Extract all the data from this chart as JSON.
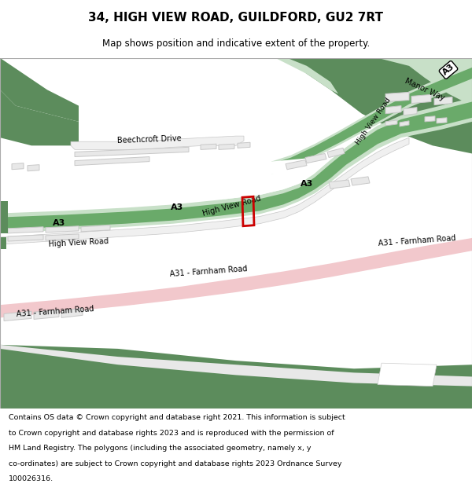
{
  "title": "34, HIGH VIEW ROAD, GUILDFORD, GU2 7RT",
  "subtitle": "Map shows position and indicative extent of the property.",
  "footer_lines": [
    "Contains OS data © Crown copyright and database right 2021. This information is subject",
    "to Crown copyright and database rights 2023 and is reproduced with the permission of",
    "HM Land Registry. The polygons (including the associated geometry, namely x, y",
    "co-ordinates) are subject to Crown copyright and database rights 2023 Ordnance Survey",
    "100026316."
  ],
  "bg_color": "#ffffff",
  "map_bg": "#ffffff",
  "green_dark": "#5c8c5c",
  "green_light": "#c8e0c8",
  "green_stripe": "#6aaa6a",
  "a31_pink": "#f2c8cc",
  "building_fill": "#e8e8e8",
  "building_edge": "#c8c8c8",
  "road_fill": "#f0f0f0",
  "road_edge": "#c8c8c8",
  "red_box": "#cc0000"
}
